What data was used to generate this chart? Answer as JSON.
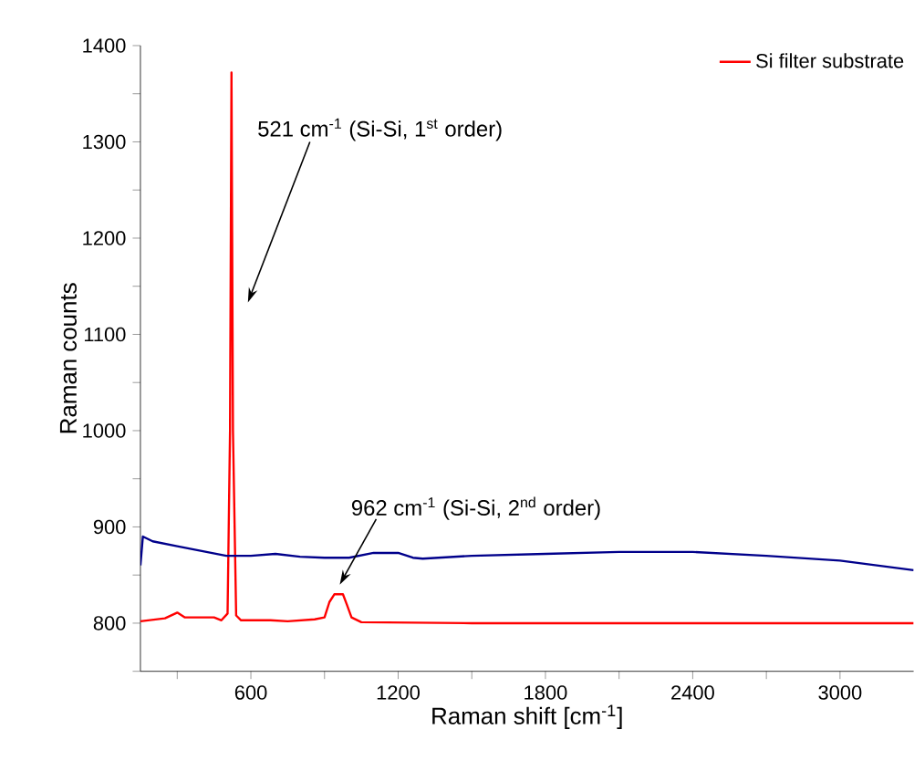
{
  "chart_data": {
    "type": "line",
    "xlabel": "Raman shift [cm$^{-1}$]",
    "ylabel": "Raman counts",
    "xlim": [
      150,
      3300
    ],
    "ylim": [
      750,
      1400
    ],
    "xticks": [
      {
        "value": 300,
        "label": null
      },
      600,
      {
        "value": 900,
        "label": null
      },
      1200,
      {
        "value": 1500,
        "label": null
      },
      1800,
      {
        "value": 2100,
        "label": null
      },
      2400,
      {
        "value": 2700,
        "label": null
      },
      3000
    ],
    "yticks": [
      {
        "value": 750,
        "label": null
      },
      800,
      {
        "value": 850,
        "label": null
      },
      900,
      {
        "value": 950,
        "label": null
      },
      1000,
      {
        "value": 1050,
        "label": null
      },
      1100,
      {
        "value": 1150,
        "label": null
      },
      1200,
      {
        "value": 1250,
        "label": null
      },
      1300,
      {
        "value": 1350,
        "label": null
      },
      1400
    ],
    "series": [
      {
        "name": "Si filter substrate",
        "color": "#ff0000",
        "x": [
          150,
          250,
          300,
          330,
          450,
          480,
          505,
          515,
          521,
          527,
          540,
          560,
          620,
          680,
          750,
          860,
          900,
          920,
          940,
          975,
          990,
          1010,
          1050,
          1500,
          2500,
          3300
        ],
        "values": [
          802,
          805,
          811,
          806,
          806,
          803,
          810,
          1000,
          1372,
          1000,
          808,
          803,
          803,
          803,
          802,
          804,
          806,
          822,
          830,
          830,
          820,
          806,
          801,
          800,
          800,
          800
        ]
      },
      {
        "color": "#00008b",
        "x": [
          150,
          160,
          200,
          300,
          400,
          500,
          600,
          700,
          800,
          900,
          1000,
          1100,
          1200,
          1260,
          1300,
          1500,
          1800,
          2100,
          2400,
          2700,
          3000,
          3300
        ],
        "values": [
          860,
          890,
          885,
          880,
          875,
          870,
          870,
          872,
          869,
          868,
          868,
          873,
          873,
          868,
          867,
          870,
          872,
          874,
          874,
          870,
          865,
          855
        ]
      }
    ],
    "annotations": [
      {
        "text": "521 cm$^{-1}$ (Si-Si, 1$^{st}$ order)",
        "x": 521,
        "y": 1372
      },
      {
        "text": "962 cm$^{-1}$ (Si-Si, 2$^{nd}$ order)",
        "x": 962,
        "y": 840
      }
    ],
    "legend": "top right",
    "grid": false,
    "line_style": "solid",
    "marker": "none"
  }
}
